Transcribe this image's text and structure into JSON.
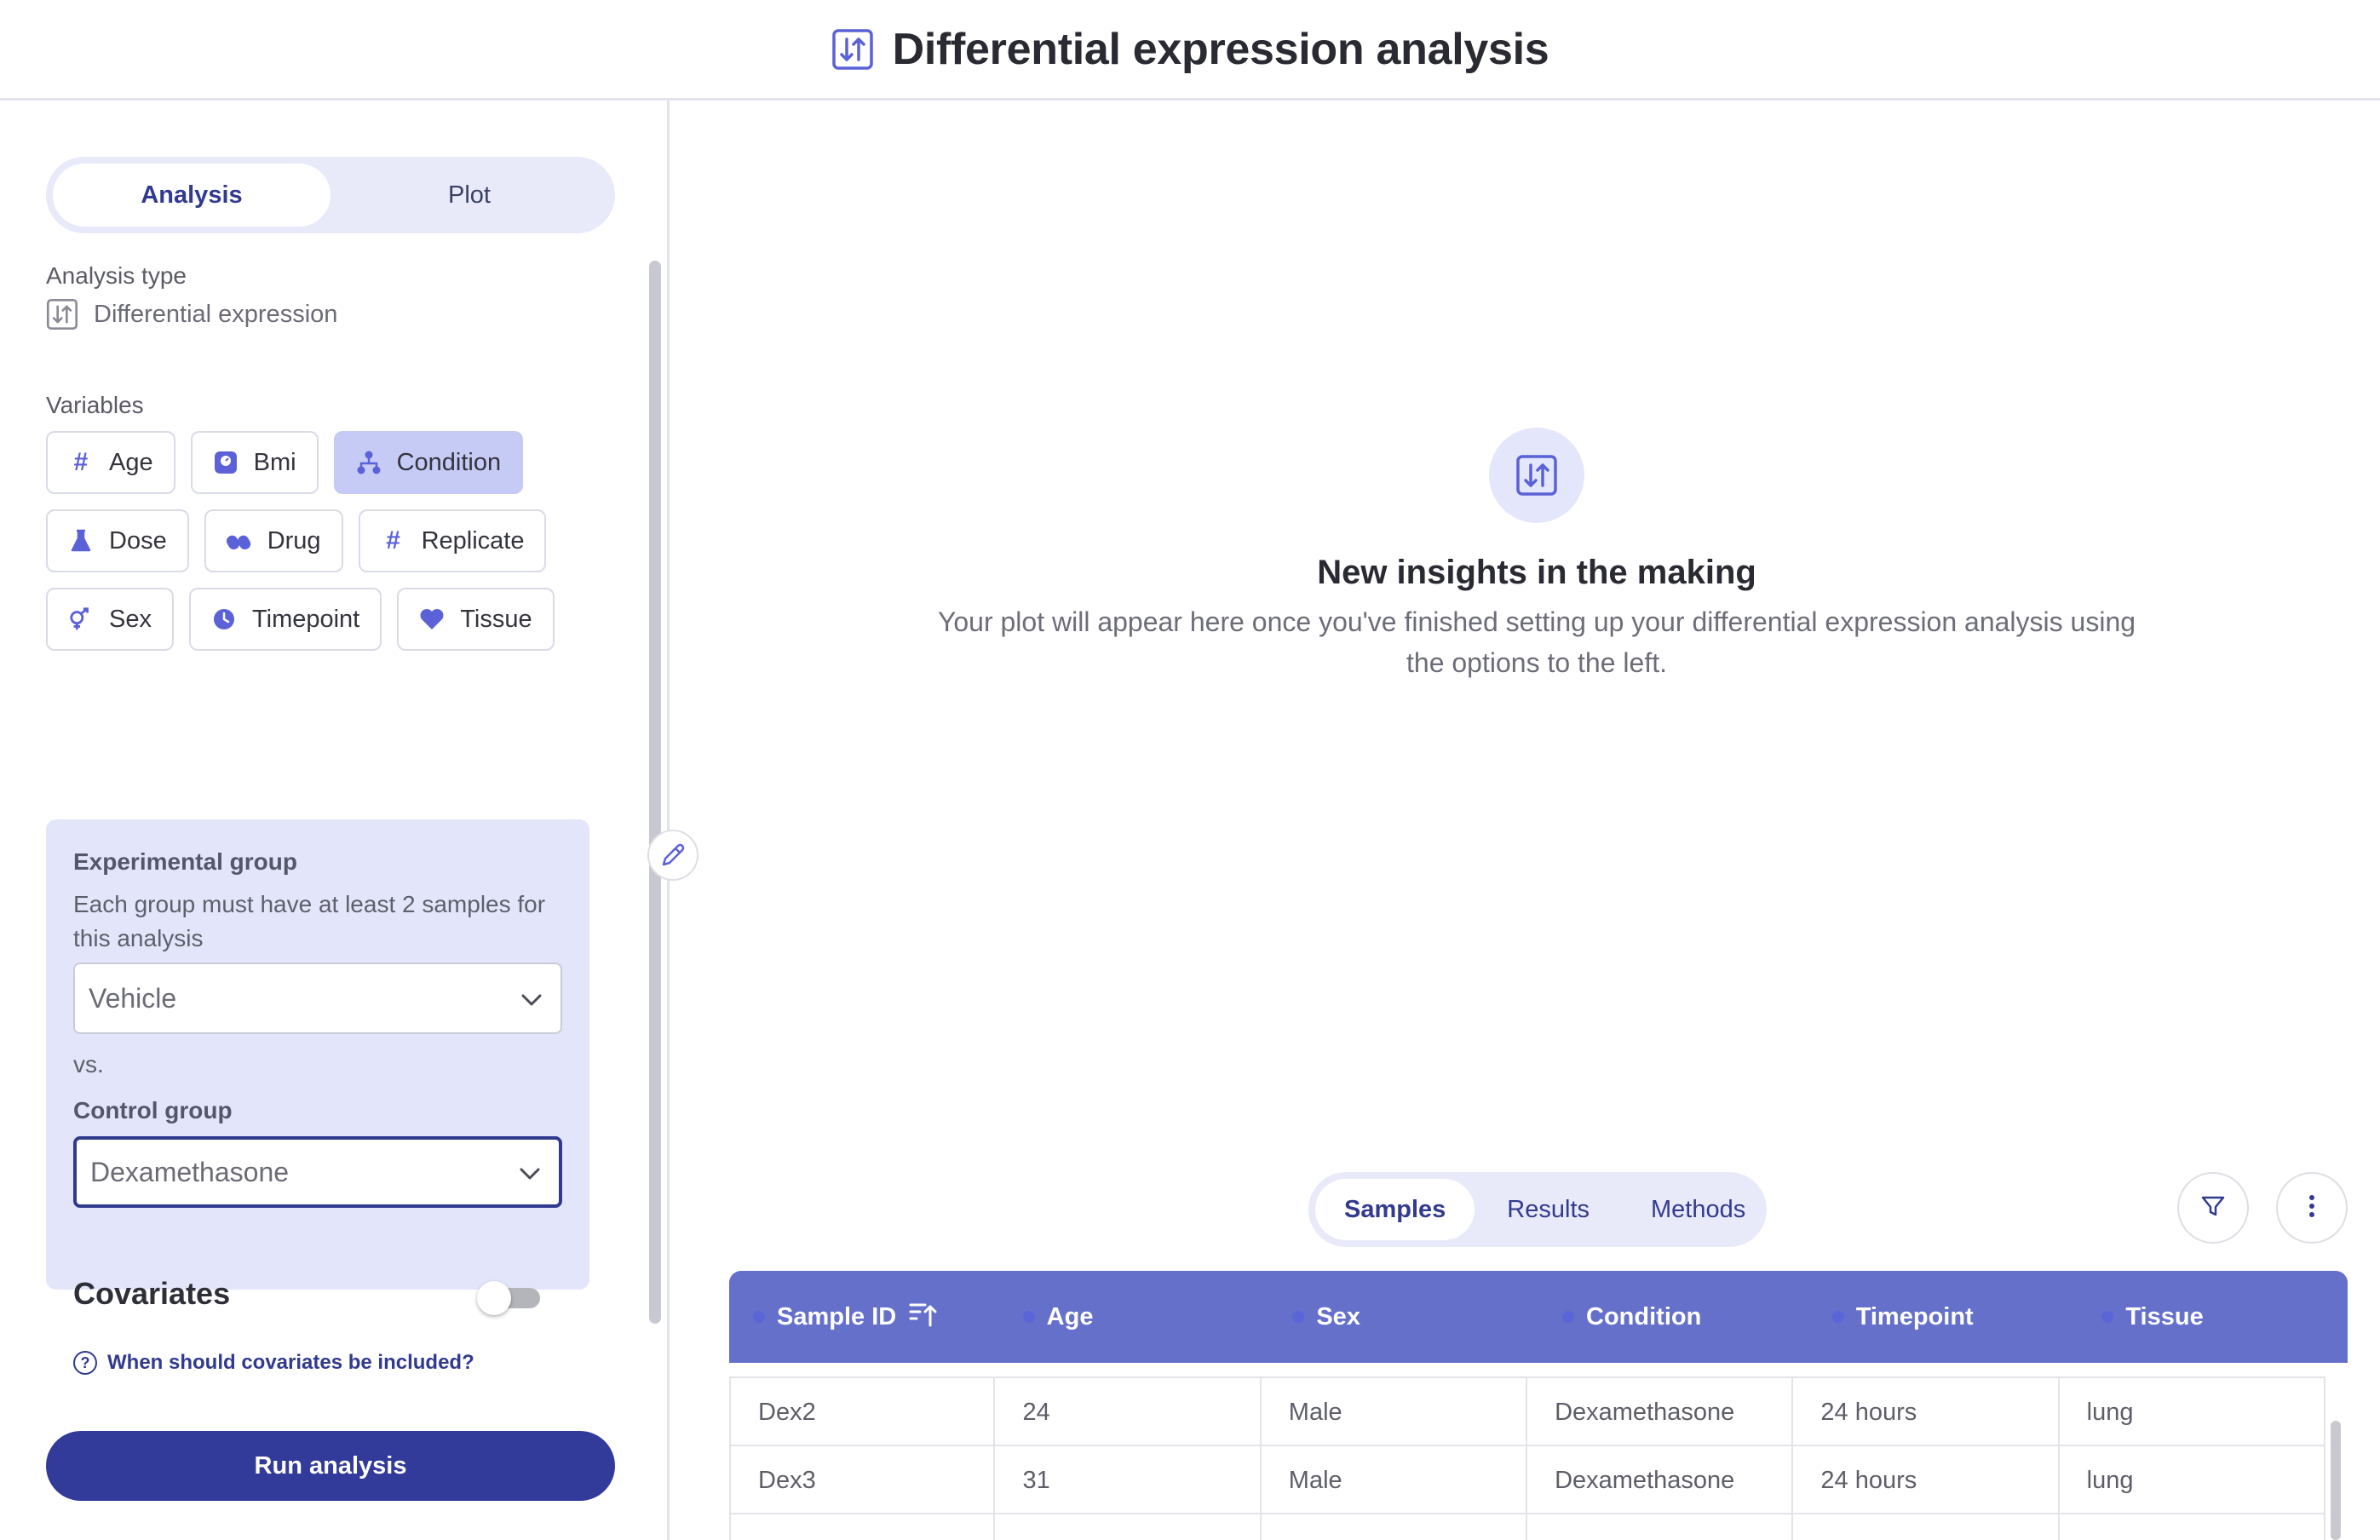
{
  "header": {
    "title": "Differential expression analysis",
    "icon": "sort-arrows-icon"
  },
  "left": {
    "segment": [
      {
        "label": "Analysis",
        "active": true
      },
      {
        "label": "Plot",
        "active": false
      }
    ],
    "analysis_type_label": "Analysis type",
    "analysis_type_value": "Differential expression",
    "variables_label": "Variables",
    "variables": [
      [
        {
          "label": "Age",
          "icon": "hash-icon"
        },
        {
          "label": "Bmi",
          "icon": "scale-icon"
        },
        {
          "label": "Condition",
          "icon": "hierarchy-icon",
          "active": true
        }
      ],
      [
        {
          "label": "Dose",
          "icon": "flask-icon"
        },
        {
          "label": "Drug",
          "icon": "pills-icon"
        },
        {
          "label": "Replicate",
          "icon": "hash-icon"
        }
      ],
      [
        {
          "label": "Sex",
          "icon": "gender-icon"
        },
        {
          "label": "Timepoint",
          "icon": "clock-icon"
        },
        {
          "label": "Tissue",
          "icon": "heart-icon"
        }
      ]
    ],
    "experimental_title": "Experimental group",
    "experimental_desc": "Each group must have at least 2 samples for this analysis",
    "experimental_value": "Vehicle",
    "vs": "vs.",
    "control_title": "Control group",
    "control_value": "Dexamethasone",
    "covariates_title": "Covariates",
    "covariates_enabled": false,
    "covariates_help": "When should covariates be included?",
    "run_label": "Run analysis"
  },
  "main": {
    "empty_title": "New insights in the making",
    "empty_desc": "Your plot will appear here once you've finished setting up your differential expression analysis using the options to the left.",
    "tabs": [
      {
        "label": "Samples",
        "active": true
      },
      {
        "label": "Results",
        "active": false
      },
      {
        "label": "Methods",
        "active": false
      }
    ],
    "table": {
      "columns": [
        "Sample ID",
        "Age",
        "Sex",
        "Condition",
        "Timepoint",
        "Tissue"
      ],
      "rows": [
        [
          "Dex2",
          "24",
          "Male",
          "Dexamethasone",
          "24 hours",
          "lung"
        ],
        [
          "Dex3",
          "31",
          "Male",
          "Dexamethasone",
          "24 hours",
          "lung"
        ]
      ]
    }
  },
  "colors": {
    "accent": "#323a9a",
    "table_header": "#6570cb",
    "chip_active": "#c6cbf5",
    "panel": "#e3e6fb"
  }
}
